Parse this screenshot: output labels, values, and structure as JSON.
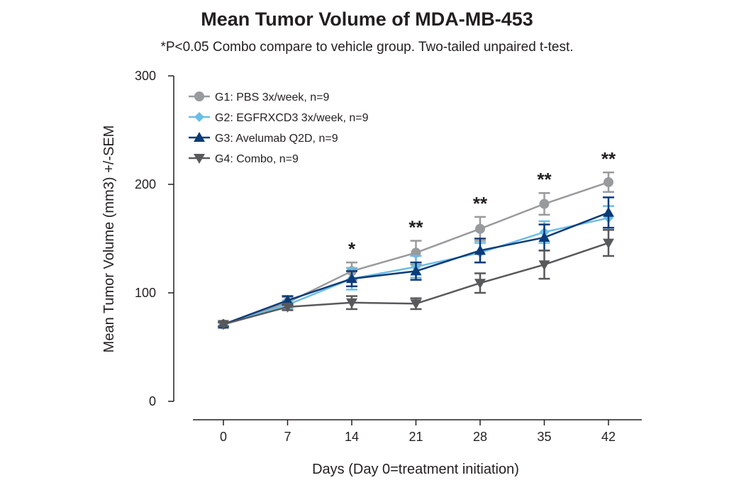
{
  "chart_data": {
    "type": "line",
    "title": "Mean Tumor Volume of MDA-MB-453",
    "subtitle": "*P<0.05 Combo compare to vehicle group. Two-tailed unpaired t-test.",
    "xlabel": "Days (Day 0=treatment initiation)",
    "ylabel": "Mean Tumor Volume (mm3) +/-SEM",
    "x": [
      0,
      7,
      14,
      21,
      28,
      35,
      42
    ],
    "xticks": [
      "0",
      "7",
      "14",
      "21",
      "28",
      "35",
      "42"
    ],
    "yticks": [
      "0",
      "100",
      "200",
      "300"
    ],
    "ylim": [
      0,
      300
    ],
    "grid": false,
    "legend": "top-left",
    "series": [
      {
        "name": "G1: PBS 3x/week, n=9",
        "color": "#999a9c",
        "marker": "circle",
        "values": [
          71,
          91,
          120,
          137,
          159,
          182,
          202
        ],
        "sem": [
          2,
          5,
          8,
          11,
          11,
          10,
          9
        ]
      },
      {
        "name": "G2: EGFRXCD3 3x/week, n=9",
        "color": "#6bbde8",
        "marker": "diamond",
        "values": [
          71,
          89,
          113,
          124,
          137,
          156,
          169
        ],
        "sem": [
          2,
          4,
          10,
          10,
          9,
          10,
          11
        ]
      },
      {
        "name": "G3: Avelumab Q2D, n=9",
        "color": "#0b3b78",
        "marker": "triangle-up",
        "values": [
          71,
          93,
          113,
          120,
          139,
          151,
          174
        ],
        "sem": [
          2,
          4,
          7,
          8,
          11,
          12,
          14
        ]
      },
      {
        "name": "G4: Combo, n=9",
        "color": "#58595b",
        "marker": "triangle-down",
        "values": [
          71,
          87,
          91,
          90,
          109,
          126,
          146
        ],
        "sem": [
          2,
          3,
          6,
          5,
          9,
          13,
          12
        ]
      }
    ],
    "annotations": [
      {
        "x": 14,
        "text": "*"
      },
      {
        "x": 21,
        "text": "**"
      },
      {
        "x": 28,
        "text": "**"
      },
      {
        "x": 35,
        "text": "**"
      },
      {
        "x": 42,
        "text": "**"
      }
    ]
  }
}
